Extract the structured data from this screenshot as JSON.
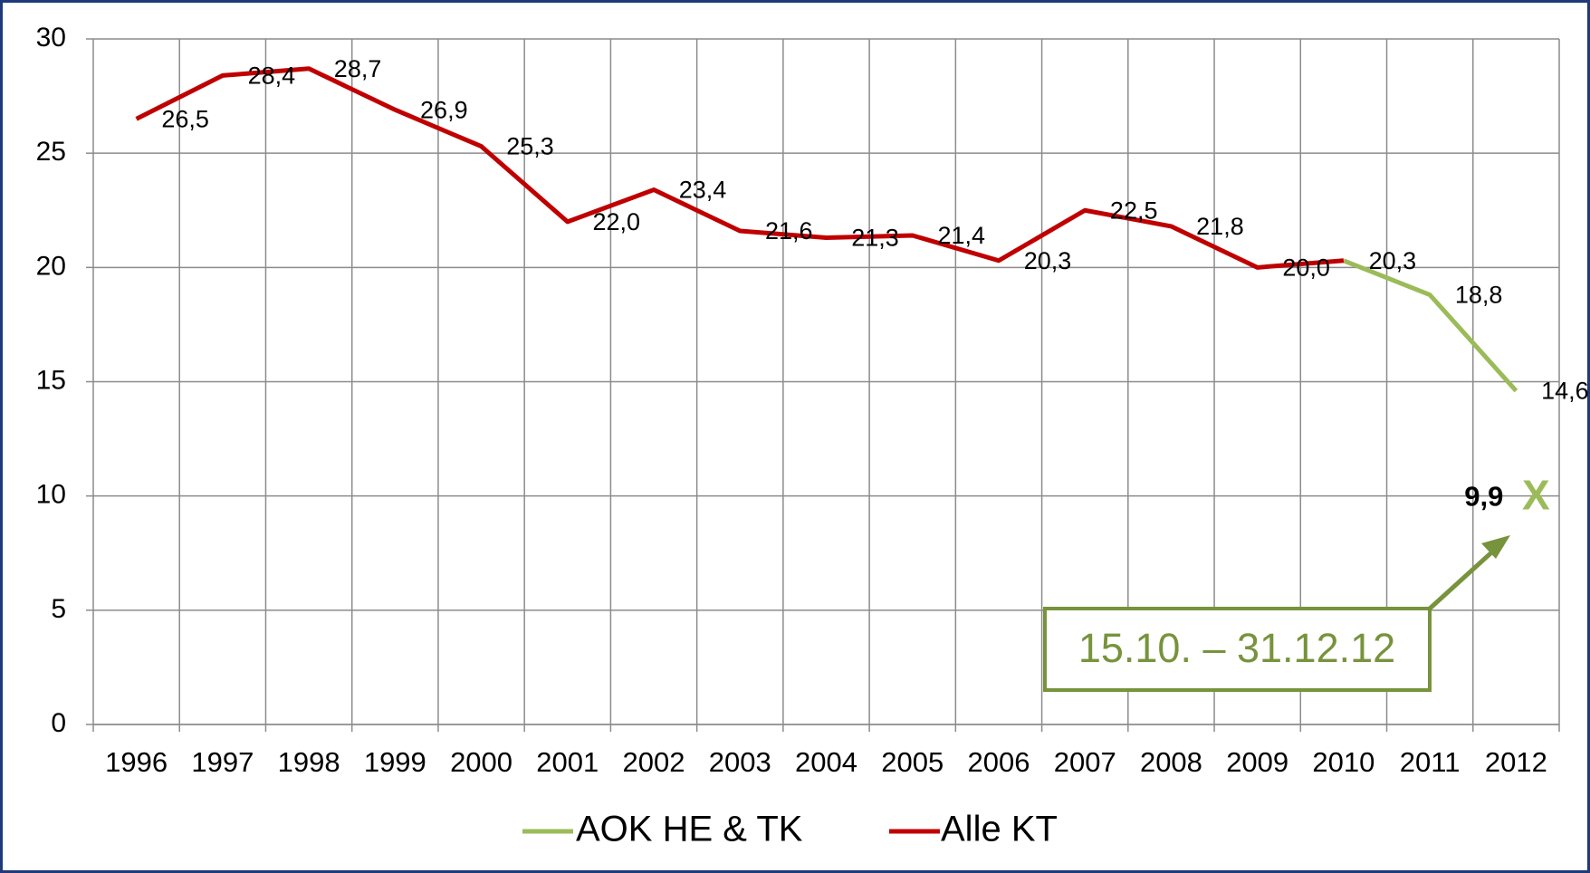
{
  "chart_data": {
    "type": "line",
    "categories": [
      "1996",
      "1997",
      "1998",
      "1999",
      "2000",
      "2001",
      "2002",
      "2003",
      "2004",
      "2005",
      "2006",
      "2007",
      "2008",
      "2009",
      "2010",
      "2011",
      "2012"
    ],
    "series": [
      {
        "name": "AOK HE & TK",
        "color": "#9bbb59",
        "values": [
          null,
          null,
          null,
          null,
          null,
          null,
          null,
          null,
          null,
          null,
          null,
          null,
          null,
          null,
          20.3,
          18.8,
          14.6
        ],
        "value_labels": [
          null,
          null,
          null,
          null,
          null,
          null,
          null,
          null,
          null,
          null,
          null,
          null,
          null,
          null,
          "20,3",
          "18,8",
          "14,6"
        ]
      },
      {
        "name": "Alle KT",
        "color": "#c00000",
        "values": [
          26.5,
          28.4,
          28.7,
          26.9,
          25.3,
          22.0,
          23.4,
          21.6,
          21.3,
          21.4,
          20.3,
          22.5,
          21.8,
          20.0,
          20.3,
          null,
          null
        ],
        "value_labels": [
          "26,5",
          "28,4",
          "28,7",
          "26,9",
          "25,3",
          "22,0",
          "23,4",
          "21,6",
          "21,3",
          "21,4",
          "20,3",
          "22,5",
          "21,8",
          "20,0",
          null,
          null,
          null
        ]
      }
    ],
    "highlight": {
      "category": "2012",
      "value": 9.9,
      "label": "9,9",
      "marker": "X",
      "note": "15.10. – 31.12.12"
    },
    "ylim": [
      0,
      30
    ],
    "yticks": [
      0,
      5,
      10,
      15,
      20,
      25,
      30
    ],
    "grid": true,
    "legend": "bottom"
  }
}
